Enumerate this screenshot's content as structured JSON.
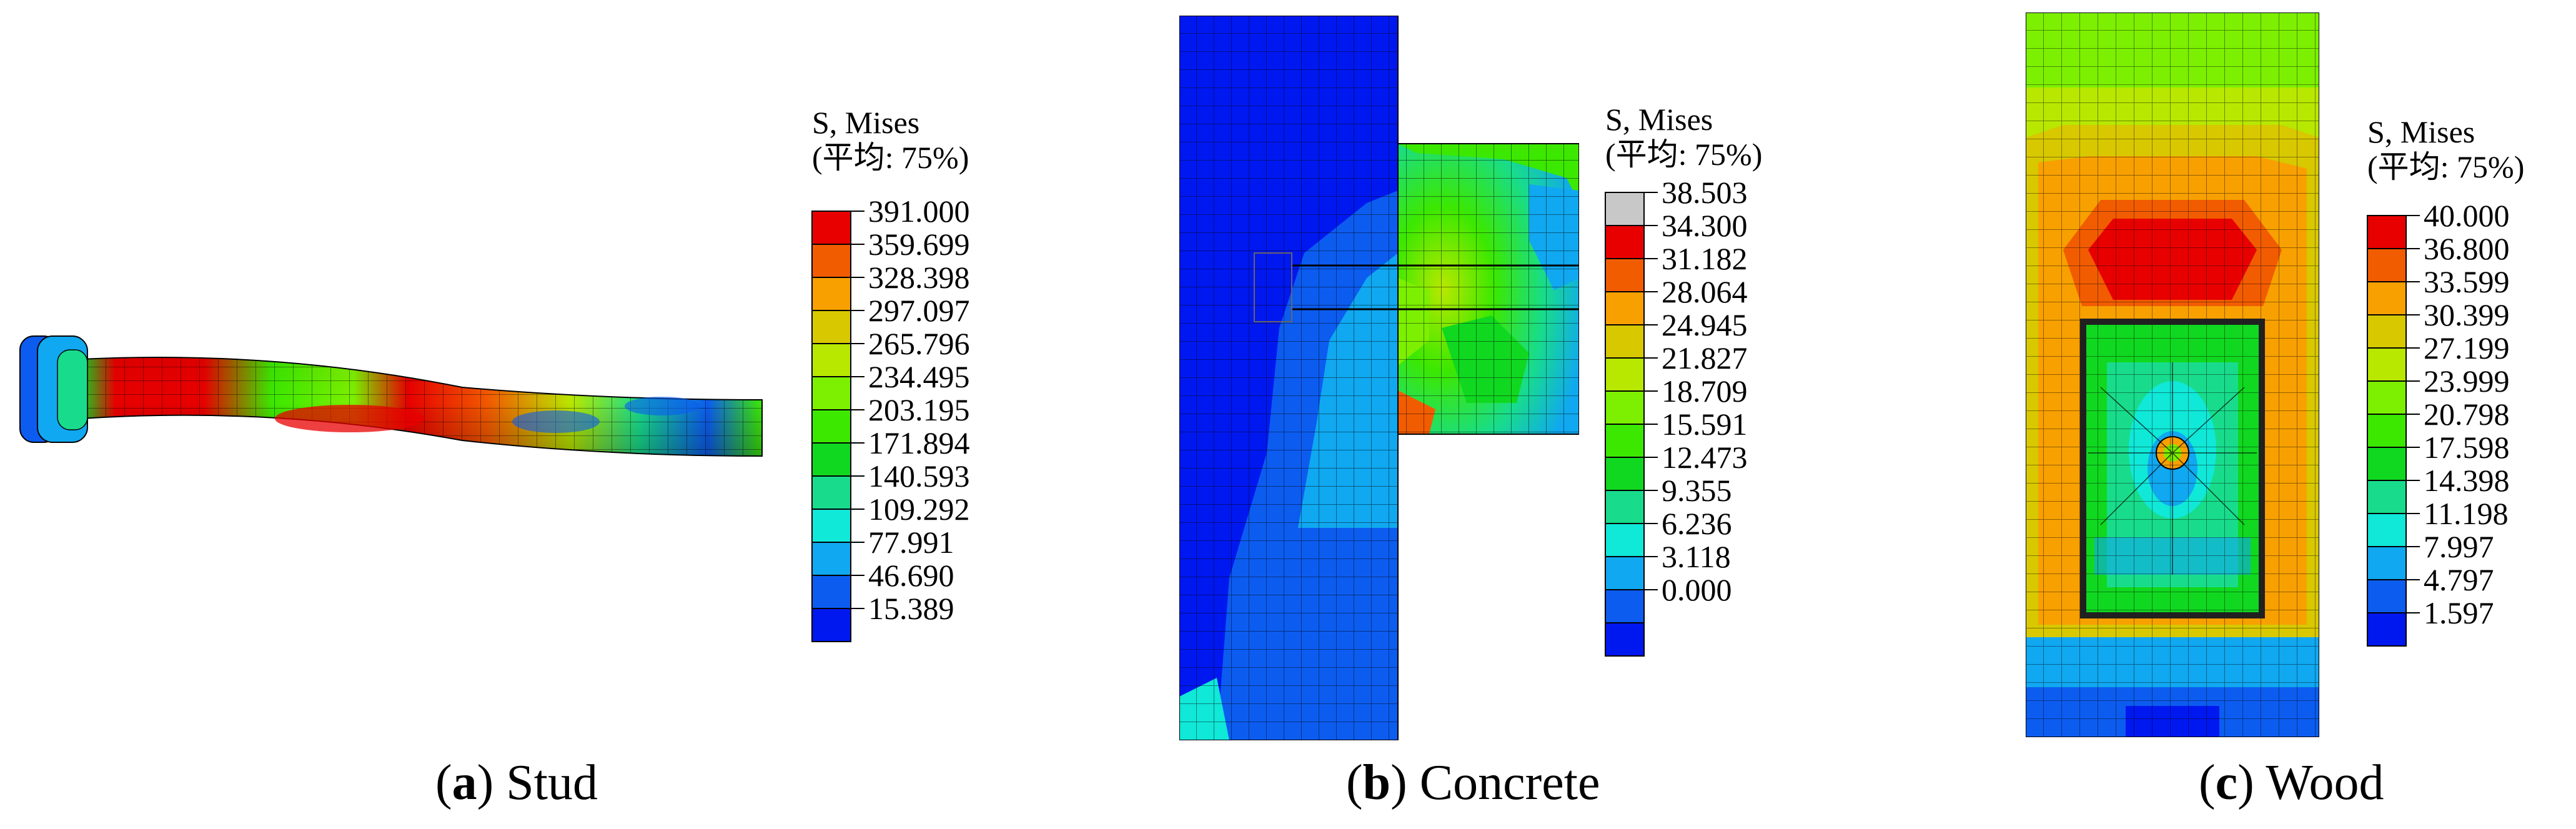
{
  "panels": [
    {
      "id": "a",
      "caption": {
        "letter": "a",
        "text": "Stud"
      },
      "legend": {
        "title_line1": "S, Mises",
        "title_line2": "(平均: 75%)",
        "values": [
          "391.000",
          "359.699",
          "328.398",
          "297.097",
          "265.796",
          "234.495",
          "203.195",
          "171.894",
          "140.593",
          "109.292",
          "77.991",
          "46.690",
          "15.389"
        ],
        "colors": [
          "#e80000",
          "#f25c00",
          "#f8a000",
          "#d8c800",
          "#b8e800",
          "#7cf000",
          "#3ce800",
          "#10d820",
          "#18dc8c",
          "#10e8d8",
          "#10a8f0",
          "#0c5cf0",
          "#0018f0"
        ]
      }
    },
    {
      "id": "b",
      "caption": {
        "letter": "b",
        "text": "Concrete"
      },
      "legend": {
        "title_line1": "S, Mises",
        "title_line2": "(平均: 75%)",
        "values": [
          "38.503",
          "34.300",
          "31.182",
          "28.064",
          "24.945",
          "21.827",
          "18.709",
          "15.591",
          "12.473",
          "9.355",
          "6.236",
          "3.118",
          "0.000"
        ],
        "colors": [
          "#c8c8c8",
          "#e80000",
          "#f25c00",
          "#f8a000",
          "#d8c800",
          "#b8e800",
          "#7cf000",
          "#3ce800",
          "#10d820",
          "#18dc8c",
          "#10e8d8",
          "#10a8f0",
          "#0c5cf0",
          "#0018f0"
        ]
      }
    },
    {
      "id": "c",
      "caption": {
        "letter": "c",
        "text": "Wood"
      },
      "legend": {
        "title_line1": "S, Mises",
        "title_line2": "(平均: 75%)",
        "values": [
          "40.000",
          "36.800",
          "33.599",
          "30.399",
          "27.199",
          "23.999",
          "20.798",
          "17.598",
          "14.398",
          "11.198",
          "7.997",
          "4.797",
          "1.597"
        ],
        "colors": [
          "#e80000",
          "#f25c00",
          "#f8a000",
          "#d8c800",
          "#b8e800",
          "#7cf000",
          "#3ce800",
          "#10d820",
          "#18dc8c",
          "#10e8d8",
          "#10a8f0",
          "#0c5cf0",
          "#0018f0"
        ]
      }
    }
  ]
}
